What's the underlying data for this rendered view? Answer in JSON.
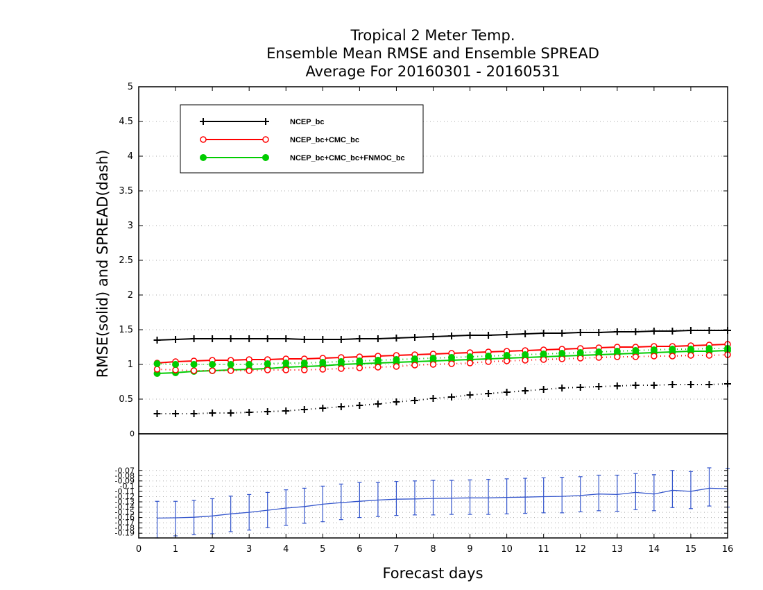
{
  "chart_data": [
    {
      "type": "line",
      "panel": "main",
      "title": [
        "Tropical 2 Meter Temp.",
        "Ensemble Mean RMSE and Ensemble SPREAD",
        "Average For 20160301 - 20160531"
      ],
      "ylabel": "RMSE(solid) and SPREAD(dash)",
      "xlabel": "Forecast days",
      "xlim": [
        0,
        16
      ],
      "ylim": [
        0,
        5
      ],
      "yticks": [
        "0.5",
        "1",
        "1.5",
        "2",
        "2.5",
        "3",
        "3.5",
        "4",
        "4.5",
        "5"
      ],
      "xticks": [
        "0",
        "1",
        "2",
        "3",
        "4",
        "5",
        "6",
        "7",
        "8",
        "9",
        "10",
        "11",
        "12",
        "13",
        "14",
        "15",
        "16"
      ],
      "grid": true,
      "legend_position": "top-left",
      "x": [
        0.5,
        1,
        1.5,
        2,
        2.5,
        3,
        3.5,
        4,
        4.5,
        5,
        5.5,
        6,
        6.5,
        7,
        7.5,
        8,
        8.5,
        9,
        9.5,
        10,
        10.5,
        11,
        11.5,
        12,
        12.5,
        13,
        13.5,
        14,
        14.5,
        15,
        15.5,
        16
      ],
      "series": [
        {
          "name": "NCEP_bc",
          "color": "#000000",
          "marker": "plus",
          "style": "solid",
          "values": [
            1.35,
            1.36,
            1.37,
            1.37,
            1.37,
            1.37,
            1.37,
            1.37,
            1.36,
            1.36,
            1.36,
            1.37,
            1.37,
            1.38,
            1.39,
            1.4,
            1.41,
            1.42,
            1.42,
            1.43,
            1.44,
            1.45,
            1.45,
            1.46,
            1.46,
            1.47,
            1.47,
            1.48,
            1.48,
            1.49,
            1.49,
            1.49
          ]
        },
        {
          "name": "NCEP_bc+CMC_bc",
          "color": "#ff0000",
          "marker": "circle-open",
          "style": "solid",
          "values": [
            1.02,
            1.04,
            1.05,
            1.06,
            1.06,
            1.07,
            1.07,
            1.08,
            1.08,
            1.09,
            1.1,
            1.11,
            1.12,
            1.13,
            1.14,
            1.15,
            1.16,
            1.17,
            1.18,
            1.19,
            1.2,
            1.21,
            1.22,
            1.23,
            1.24,
            1.25,
            1.25,
            1.26,
            1.26,
            1.27,
            1.28,
            1.29
          ]
        },
        {
          "name": "NCEP_bc+CMC_bc+FNMOC_bc",
          "color": "#00cc00",
          "marker": "circle-filled",
          "style": "solid",
          "values": [
            0.87,
            0.88,
            0.9,
            0.91,
            0.92,
            0.93,
            0.94,
            0.96,
            0.97,
            0.98,
            1.0,
            1.01,
            1.02,
            1.03,
            1.04,
            1.05,
            1.06,
            1.07,
            1.08,
            1.09,
            1.1,
            1.11,
            1.12,
            1.13,
            1.14,
            1.15,
            1.16,
            1.17,
            1.18,
            1.19,
            1.19,
            1.2
          ]
        },
        {
          "name": "",
          "color": "#000000",
          "marker": "plus",
          "style": "dash",
          "values": [
            0.29,
            0.29,
            0.29,
            0.3,
            0.3,
            0.31,
            0.32,
            0.33,
            0.35,
            0.37,
            0.39,
            0.41,
            0.43,
            0.46,
            0.48,
            0.51,
            0.53,
            0.56,
            0.58,
            0.6,
            0.62,
            0.64,
            0.66,
            0.67,
            0.68,
            0.69,
            0.7,
            0.7,
            0.71,
            0.71,
            0.71,
            0.72
          ]
        },
        {
          "name": "",
          "color": "#ff0000",
          "marker": "circle-open",
          "style": "dash",
          "values": [
            0.93,
            0.92,
            0.91,
            0.91,
            0.91,
            0.91,
            0.92,
            0.92,
            0.92,
            0.93,
            0.94,
            0.95,
            0.96,
            0.97,
            0.99,
            1.0,
            1.01,
            1.02,
            1.04,
            1.05,
            1.06,
            1.07,
            1.08,
            1.09,
            1.1,
            1.11,
            1.11,
            1.12,
            1.12,
            1.13,
            1.13,
            1.14
          ]
        },
        {
          "name": "",
          "color": "#00cc00",
          "marker": "circle-filled",
          "style": "dash",
          "values": [
            1.01,
            1.0,
            1.0,
            1.0,
            1.0,
            1.0,
            1.01,
            1.02,
            1.02,
            1.03,
            1.04,
            1.05,
            1.06,
            1.07,
            1.08,
            1.09,
            1.1,
            1.11,
            1.12,
            1.13,
            1.14,
            1.15,
            1.16,
            1.17,
            1.18,
            1.19,
            1.2,
            1.21,
            1.22,
            1.22,
            1.23,
            1.23
          ]
        }
      ]
    },
    {
      "type": "line",
      "panel": "difference",
      "xlim": [
        0,
        16
      ],
      "ylim": [
        -0.199,
        0
      ],
      "yticks": [
        "0",
        "-0.07",
        "-0.08",
        "-0.09",
        "-0.1",
        "-0.11",
        "-0.12",
        "-0.13",
        "-0.14",
        "-0.15",
        "-0.16",
        "-0.17",
        "-0.18",
        "-0.19"
      ],
      "ytick_values": [
        0,
        -0.07,
        -0.08,
        -0.09,
        -0.1,
        -0.11,
        -0.12,
        -0.13,
        -0.14,
        -0.15,
        -0.16,
        -0.17,
        -0.18,
        -0.19
      ],
      "grid": true,
      "x": [
        0.5,
        1,
        1.5,
        2,
        2.5,
        3,
        3.5,
        4,
        4.5,
        5,
        5.5,
        6,
        6.5,
        7,
        7.5,
        8,
        8.5,
        9,
        9.5,
        10,
        10.5,
        11,
        11.5,
        12,
        12.5,
        13,
        13.5,
        14,
        14.5,
        15,
        15.5,
        16
      ],
      "series": [
        {
          "name": "",
          "color": "#3355cc",
          "style": "solid",
          "values": [
            -0.161,
            -0.1605,
            -0.1595,
            -0.157,
            -0.153,
            -0.15,
            -0.146,
            -0.142,
            -0.139,
            -0.1345,
            -0.1315,
            -0.129,
            -0.1265,
            -0.125,
            -0.1245,
            -0.1235,
            -0.123,
            -0.1225,
            -0.1225,
            -0.1215,
            -0.121,
            -0.12,
            -0.1195,
            -0.118,
            -0.115,
            -0.116,
            -0.112,
            -0.115,
            -0.108,
            -0.11,
            -0.104,
            -0.105
          ],
          "error_upper": [
            -0.129,
            -0.129,
            -0.127,
            -0.124,
            -0.119,
            -0.116,
            -0.112,
            -0.107,
            -0.104,
            -0.1,
            -0.096,
            -0.093,
            -0.093,
            -0.091,
            -0.09,
            -0.089,
            -0.089,
            -0.088,
            -0.087,
            -0.086,
            -0.085,
            -0.084,
            -0.083,
            -0.082,
            -0.079,
            -0.079,
            -0.076,
            -0.078,
            -0.07,
            -0.072,
            -0.065,
            -0.066
          ],
          "error_lower": [
            -0.199,
            -0.195,
            -0.193,
            -0.191,
            -0.187,
            -0.184,
            -0.179,
            -0.175,
            -0.171,
            -0.168,
            -0.164,
            -0.16,
            -0.158,
            -0.156,
            -0.155,
            -0.155,
            -0.154,
            -0.154,
            -0.154,
            -0.153,
            -0.152,
            -0.151,
            -0.151,
            -0.149,
            -0.147,
            -0.148,
            -0.145,
            -0.147,
            -0.141,
            -0.143,
            -0.138,
            -0.14
          ]
        }
      ]
    }
  ]
}
